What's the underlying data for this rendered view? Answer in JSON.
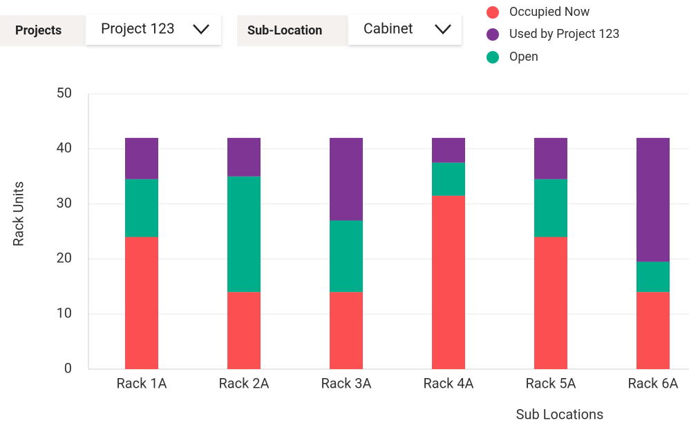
{
  "controls": [
    {
      "label": "Projects",
      "value": "Project 123"
    },
    {
      "label": "Sub-Location",
      "value": "Cabinet"
    }
  ],
  "chart_data": {
    "type": "stacked_bar",
    "x_label": "Sub Locations",
    "y_label": "Rack Units",
    "categories": [
      "Rack 1A",
      "Rack 2A",
      "Rack 3A",
      "Rack 4A",
      "Rack 5A",
      "Rack 6A"
    ],
    "series": [
      {
        "name": "Occupied Now",
        "color": "#fc4f51",
        "values": [
          24,
          14,
          14,
          31.5,
          24,
          14
        ]
      },
      {
        "name": "Used by Project 123",
        "color": "#7f3594",
        "values": [
          7.5,
          7,
          15,
          4.5,
          7.5,
          22.5
        ]
      },
      {
        "name": "Open",
        "color": "#00ad8a",
        "values": [
          10.5,
          21,
          13,
          6,
          10.5,
          5.5
        ]
      }
    ],
    "ylim": [
      0,
      50
    ],
    "yticks": [
      0,
      10,
      20,
      30,
      40,
      50
    ],
    "grid": true
  }
}
